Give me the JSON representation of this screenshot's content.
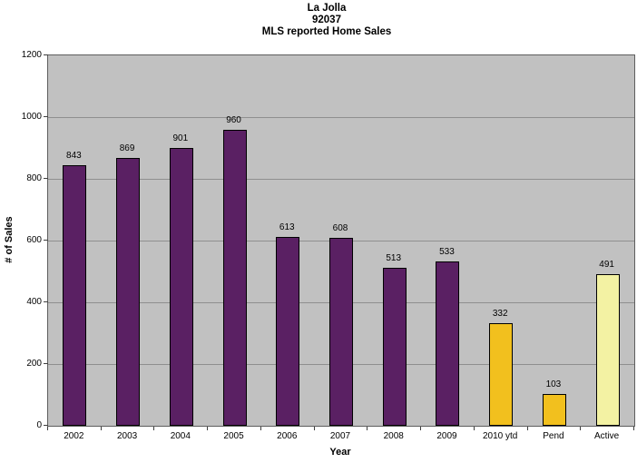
{
  "title": {
    "line1": "La Jolla",
    "line2": "92037",
    "line3": "MLS reported Home Sales"
  },
  "chart_data": {
    "type": "bar",
    "title": "La Jolla 92037 MLS reported Home Sales",
    "categories": [
      "2002",
      "2003",
      "2004",
      "2005",
      "2006",
      "2007",
      "2008",
      "2009",
      "2010 ytd",
      "Pend",
      "Active"
    ],
    "values": [
      843,
      869,
      901,
      960,
      613,
      608,
      513,
      533,
      332,
      103,
      491
    ],
    "data_labels": [
      "843",
      "869",
      "901",
      "960",
      "613",
      "608",
      "513",
      "533",
      "332",
      "103",
      "491"
    ],
    "bar_colors": [
      "#5a2063",
      "#5a2063",
      "#5a2063",
      "#5a2063",
      "#5a2063",
      "#5a2063",
      "#5a2063",
      "#5a2063",
      "#f2c01e",
      "#f2c01e",
      "#f3f2a3"
    ],
    "xlabel": "Year",
    "ylabel": "# of Sales",
    "ylim": [
      0,
      1200
    ],
    "yticks": [
      0,
      200,
      400,
      600,
      800,
      1000,
      1200
    ],
    "grid": true,
    "legend": "none",
    "plot_background": "#c1c1c1",
    "gridline_color": "#8f8f8f",
    "bar_border_color": "#000000",
    "colors": {
      "annual_sales": "#5a2063",
      "ytd_and_pending": "#f2c01e",
      "active": "#f3f2a3"
    }
  }
}
